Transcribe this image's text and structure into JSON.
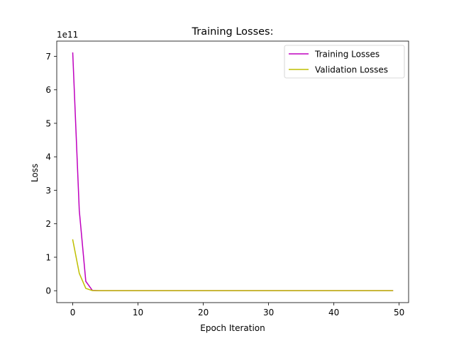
{
  "chart_data": {
    "type": "line",
    "title": "Training Losses:",
    "xlabel": "Epoch Iteration",
    "ylabel": "Loss",
    "y_offset_label": "1e11",
    "xlim": [
      -2.45,
      51.45
    ],
    "ylim": [
      -0.355,
      7.455
    ],
    "x_ticks": [
      0,
      10,
      20,
      30,
      40,
      50
    ],
    "x_tick_labels": [
      "0",
      "10",
      "20",
      "30",
      "40",
      "50"
    ],
    "y_ticks": [
      0,
      1,
      2,
      3,
      4,
      5,
      6,
      7
    ],
    "y_tick_labels": [
      "0",
      "1",
      "2",
      "3",
      "4",
      "5",
      "6",
      "7"
    ],
    "legend_position": "top-right",
    "grid": false,
    "y_scale": "1e11",
    "series": [
      {
        "name": "Training Losses",
        "color": "#bf00bf",
        "x": [
          0,
          1,
          2,
          3,
          4,
          5,
          6,
          7,
          8,
          9,
          10,
          11,
          12,
          13,
          14,
          15,
          16,
          17,
          18,
          19,
          20,
          21,
          22,
          23,
          24,
          25,
          26,
          27,
          28,
          29,
          30,
          31,
          32,
          33,
          34,
          35,
          36,
          37,
          38,
          39,
          40,
          41,
          42,
          43,
          44,
          45,
          46,
          47,
          48,
          49
        ],
        "values": [
          7.1,
          2.4,
          0.28,
          0.01,
          0.002,
          0.001,
          0.001,
          0.001,
          0.001,
          0.001,
          0.001,
          0.001,
          0.001,
          0.001,
          0.001,
          0.001,
          0.001,
          0.001,
          0.001,
          0.001,
          0.001,
          0.001,
          0.001,
          0.001,
          0.001,
          0.001,
          0.001,
          0.001,
          0.001,
          0.001,
          0.001,
          0.001,
          0.001,
          0.001,
          0.001,
          0.001,
          0.001,
          0.001,
          0.001,
          0.001,
          0.001,
          0.001,
          0.001,
          0.001,
          0.001,
          0.001,
          0.001,
          0.001,
          0.001,
          0.001
        ]
      },
      {
        "name": "Validation Losses",
        "color": "#bfbf00",
        "x": [
          0,
          1,
          2,
          3,
          4,
          5,
          6,
          7,
          8,
          9,
          10,
          11,
          12,
          13,
          14,
          15,
          16,
          17,
          18,
          19,
          20,
          21,
          22,
          23,
          24,
          25,
          26,
          27,
          28,
          29,
          30,
          31,
          32,
          33,
          34,
          35,
          36,
          37,
          38,
          39,
          40,
          41,
          42,
          43,
          44,
          45,
          46,
          47,
          48,
          49
        ],
        "values": [
          1.52,
          0.52,
          0.07,
          0.005,
          0.001,
          0.001,
          0.001,
          0.001,
          0.001,
          0.001,
          0.001,
          0.001,
          0.001,
          0.001,
          0.001,
          0.001,
          0.001,
          0.001,
          0.001,
          0.001,
          0.001,
          0.001,
          0.001,
          0.001,
          0.001,
          0.001,
          0.001,
          0.001,
          0.001,
          0.001,
          0.001,
          0.001,
          0.001,
          0.001,
          0.001,
          0.001,
          0.001,
          0.001,
          0.001,
          0.001,
          0.001,
          0.001,
          0.001,
          0.001,
          0.001,
          0.001,
          0.001,
          0.001,
          0.001,
          0.001
        ]
      }
    ]
  }
}
